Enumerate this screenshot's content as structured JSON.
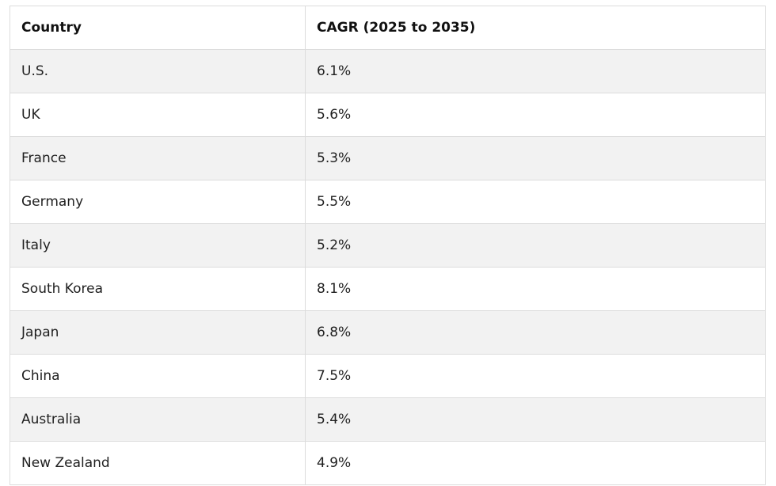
{
  "table": {
    "headers": [
      "Country",
      "CAGR (2025 to 2035)"
    ],
    "rows": [
      {
        "country": "U.S.",
        "cagr": "6.1%"
      },
      {
        "country": "UK",
        "cagr": "5.6%"
      },
      {
        "country": "France",
        "cagr": "5.3%"
      },
      {
        "country": "Germany",
        "cagr": "5.5%"
      },
      {
        "country": "Italy",
        "cagr": "5.2%"
      },
      {
        "country": "South Korea",
        "cagr": "8.1%"
      },
      {
        "country": "Japan",
        "cagr": "6.8%"
      },
      {
        "country": "China",
        "cagr": "7.5%"
      },
      {
        "country": "Australia",
        "cagr": "5.4%"
      },
      {
        "country": "New Zealand",
        "cagr": "4.9%"
      }
    ]
  },
  "colors": {
    "header_bg": "#ffffff",
    "row_alt_bg": "#f2f2f2",
    "row_bg": "#ffffff",
    "border": "#dcdcdc",
    "text": "#1f1f1f"
  }
}
